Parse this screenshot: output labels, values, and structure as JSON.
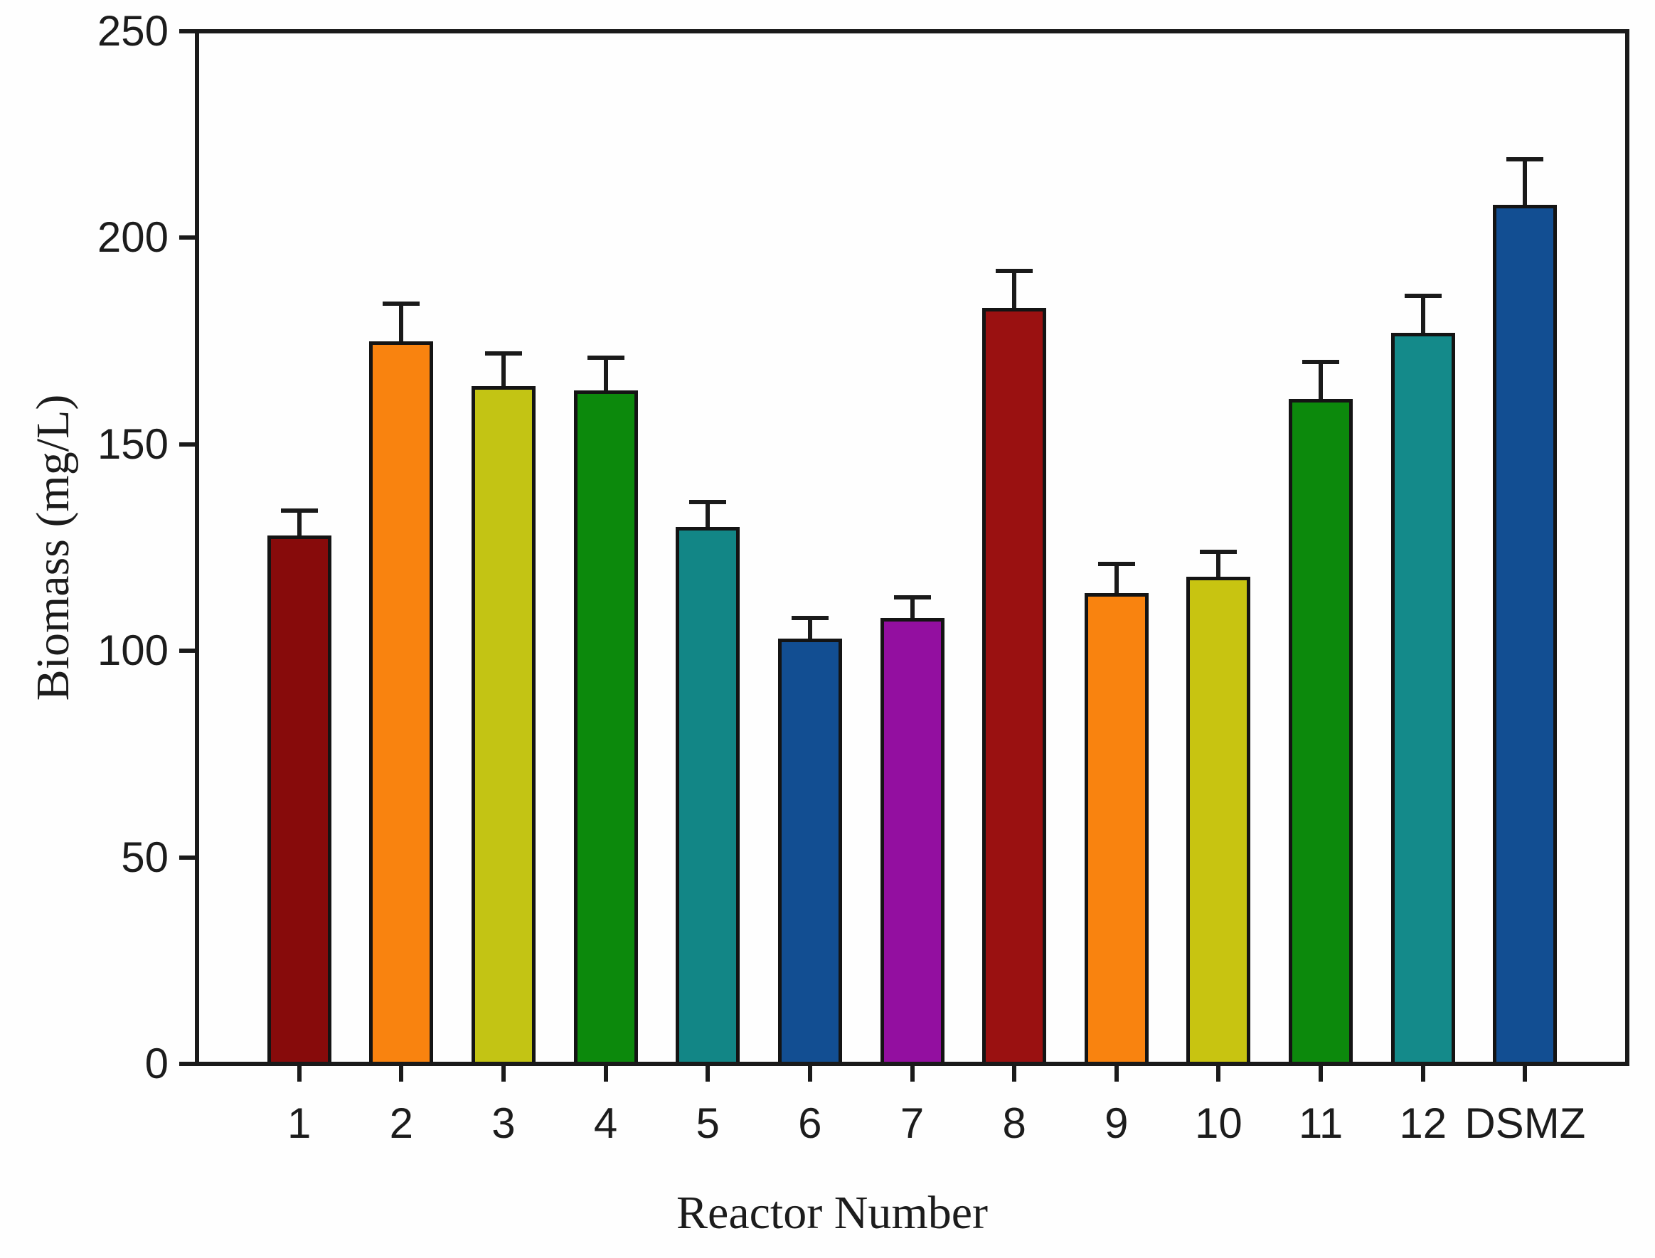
{
  "figure": {
    "background_color": "#fefefe",
    "axis_line_color": "#1a1a1a",
    "text_color": "#1c1c1c"
  },
  "chart_data": {
    "type": "bar",
    "title": "",
    "xlabel": "Reactor Number",
    "ylabel": "Biomass (mg/L)",
    "categories": [
      "1",
      "2",
      "3",
      "4",
      "5",
      "6",
      "7",
      "8",
      "9",
      "10",
      "11",
      "12",
      "DSMZ"
    ],
    "values": [
      128,
      175,
      164,
      163,
      130,
      103,
      108,
      183,
      114,
      118,
      161,
      177,
      208
    ],
    "errors_plus": [
      6,
      9,
      8,
      8,
      6,
      5,
      5,
      9,
      7,
      6,
      9,
      9,
      11
    ],
    "bar_colors": [
      "#870B0B",
      "#F9830F",
      "#C3C414",
      "#0C890C",
      "#128686",
      "#124E92",
      "#930FA0",
      "#9A1111",
      "#F9830F",
      "#C8C411",
      "#0C890C",
      "#148A8A",
      "#124E92"
    ],
    "bar_outline_color": "#141414",
    "error_bar_color": "#1a1a1a",
    "ylim": [
      0,
      250
    ],
    "ytick_step": 50,
    "ytick_labels": [
      "0",
      "50",
      "100",
      "150",
      "200",
      "250"
    ],
    "grid": false,
    "legend": null,
    "error_bars": "upper-only"
  }
}
